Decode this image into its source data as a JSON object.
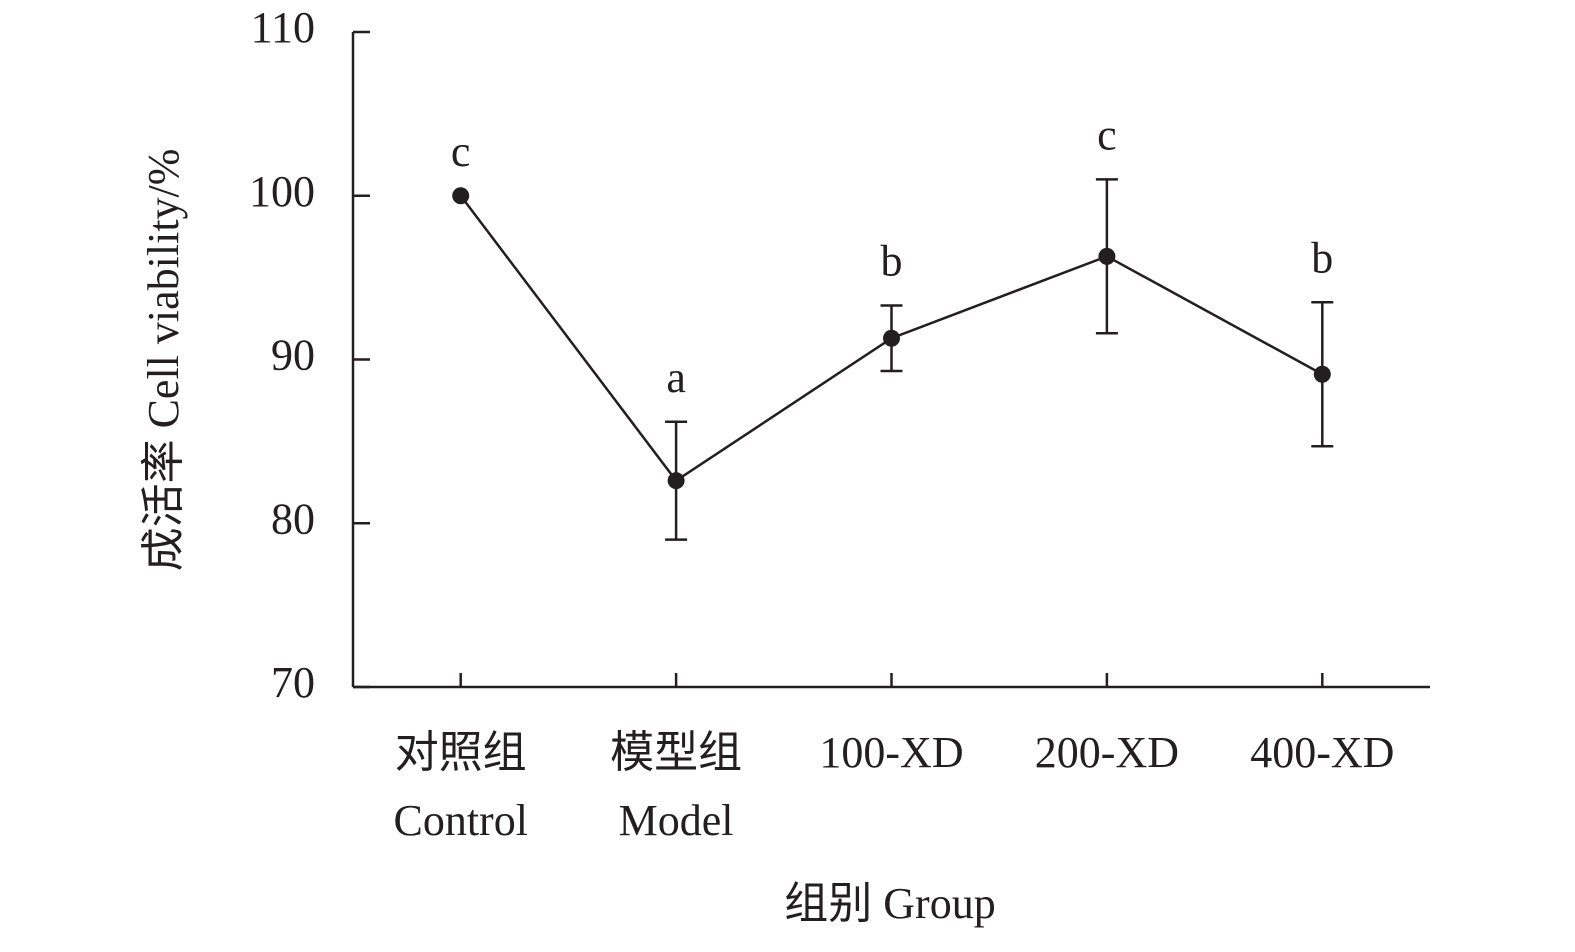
{
  "chart_data": {
    "type": "line",
    "xlabel": "组别 Group",
    "ylabel": "成活率 Cell viability/%",
    "categories": [
      "对照组\nControl",
      "模型组\nModel",
      "100-XD",
      "200-XD",
      "400-XD"
    ],
    "series": [
      {
        "name": "Cell viability",
        "color": "#231f20",
        "values": [
          100,
          82.6,
          91.3,
          96.3,
          89.1
        ],
        "errors": [
          0,
          3.6,
          2.0,
          4.7,
          4.4
        ]
      }
    ],
    "annotations": [
      "c",
      "a",
      "b",
      "c",
      "b"
    ],
    "ylim": [
      70,
      110
    ],
    "yticks": [
      70,
      80,
      90,
      100,
      110
    ],
    "grid": false
  }
}
